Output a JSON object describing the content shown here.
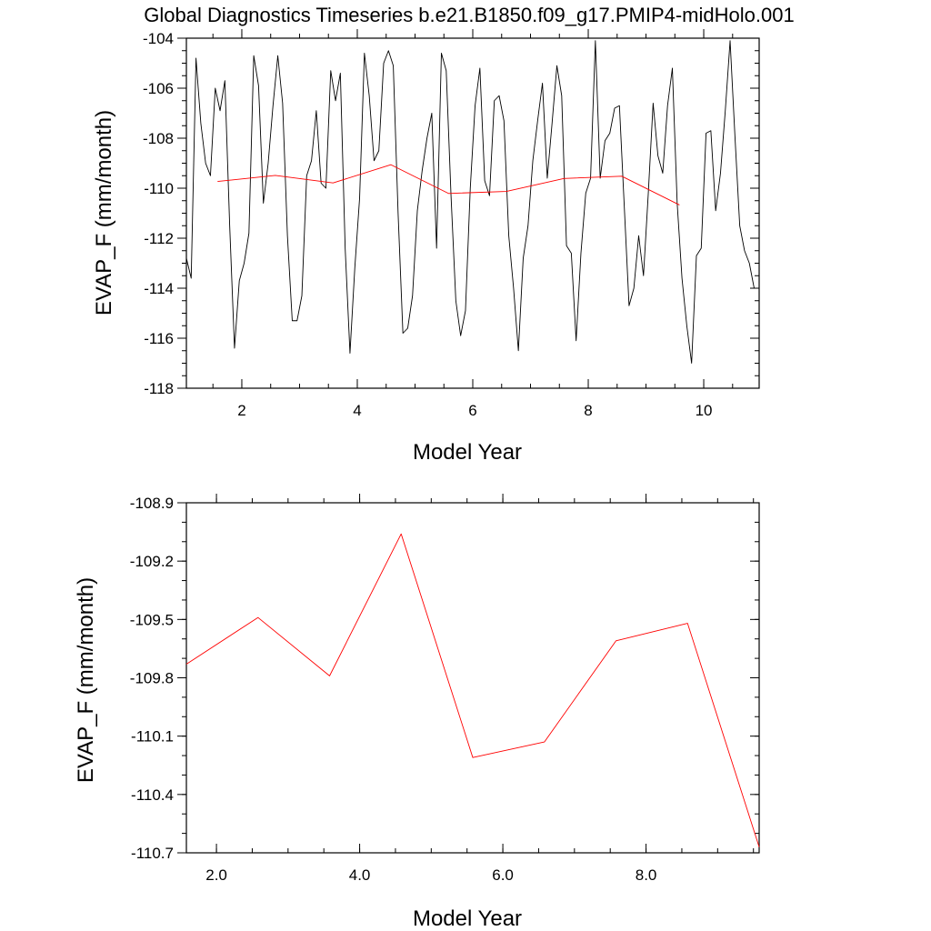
{
  "title": "Global Diagnostics Timeseries b.e21.B1850.f09_g17.PMIP4-midHolo.001",
  "chart_data": [
    {
      "type": "line",
      "xlabel": "Model Year",
      "ylabel": "EVAP_F (mm/month)",
      "xlim": [
        1.04,
        10.96
      ],
      "ylim": [
        -118,
        -104
      ],
      "x_ticks": [
        2,
        4,
        6,
        8,
        10
      ],
      "x_tick_labels": [
        "2",
        "4",
        "6",
        "8",
        "10"
      ],
      "y_ticks": [
        -118,
        -116,
        -114,
        -112,
        -110,
        -108,
        -106,
        -104
      ],
      "y_tick_labels": [
        "-118",
        "-116",
        "-114",
        "-112",
        "-110",
        "-108",
        "-106",
        "-104"
      ],
      "grid": false,
      "series": [
        {
          "color": "#000000",
          "x_start": 1.04,
          "x_step": 0.0833333,
          "values": [
            -112.8,
            -113.6,
            -104.8,
            -107.4,
            -109.0,
            -109.5,
            -106.0,
            -106.9,
            -105.7,
            -111.5,
            -116.4,
            -113.7,
            -113.0,
            -111.8,
            -104.7,
            -105.9,
            -110.6,
            -109.0,
            -106.7,
            -104.7,
            -106.6,
            -111.9,
            -115.3,
            -115.3,
            -114.3,
            -109.5,
            -108.9,
            -106.9,
            -109.8,
            -110.0,
            -105.3,
            -106.5,
            -105.4,
            -112.4,
            -116.6,
            -113.2,
            -110.4,
            -104.6,
            -106.3,
            -108.9,
            -108.5,
            -105.0,
            -104.5,
            -105.1,
            -111.0,
            -115.8,
            -115.6,
            -114.3,
            -110.9,
            -109.3,
            -108.0,
            -107.0,
            -112.4,
            -104.6,
            -105.3,
            -110.3,
            -114.5,
            -115.9,
            -114.9,
            -110.0,
            -106.7,
            -105.2,
            -109.7,
            -110.3,
            -106.5,
            -106.3,
            -107.3,
            -111.9,
            -114.0,
            -116.5,
            -112.8,
            -111.5,
            -108.9,
            -107.3,
            -105.8,
            -109.6,
            -107.4,
            -105.1,
            -106.3,
            -112.3,
            -112.6,
            -116.1,
            -112.6,
            -110.2,
            -109.6,
            -104.1,
            -109.6,
            -108.1,
            -107.8,
            -106.8,
            -106.7,
            -110.7,
            -114.7,
            -114.0,
            -111.9,
            -113.5,
            -110.2,
            -106.6,
            -108.7,
            -109.4,
            -106.7,
            -105.2,
            -110.6,
            -113.6,
            -115.5,
            -117.0,
            -112.7,
            -112.4,
            -107.8,
            -107.7,
            -110.9,
            -109.4,
            -106.9,
            -104.1,
            -107.9,
            -111.5,
            -112.5,
            -113.0,
            -114.0
          ]
        },
        {
          "color": "#ff0000",
          "x": [
            1.58,
            2.58,
            3.58,
            4.58,
            5.58,
            6.58,
            7.58,
            8.58,
            9.58
          ],
          "values": [
            -109.73,
            -109.49,
            -109.79,
            -109.06,
            -110.21,
            -110.13,
            -109.61,
            -109.52,
            -110.67
          ]
        }
      ]
    },
    {
      "type": "line",
      "xlabel": "Model Year",
      "ylabel": "EVAP_F (mm/month)",
      "xlim": [
        1.58,
        9.58
      ],
      "ylim": [
        -110.7,
        -108.9
      ],
      "x_ticks": [
        2.0,
        4.0,
        6.0,
        8.0
      ],
      "x_tick_labels": [
        "2.0",
        "4.0",
        "6.0",
        "8.0"
      ],
      "y_ticks": [
        -110.7,
        -110.4,
        -110.1,
        -109.8,
        -109.5,
        -109.2,
        -108.9
      ],
      "y_tick_labels": [
        "-110.7",
        "-110.4",
        "-110.1",
        "-109.8",
        "-109.5",
        "-109.2",
        "-108.9"
      ],
      "grid": false,
      "series": [
        {
          "color": "#ff0000",
          "x": [
            1.58,
            2.58,
            3.58,
            4.58,
            5.58,
            6.58,
            7.58,
            8.58,
            9.58
          ],
          "values": [
            -109.73,
            -109.49,
            -109.79,
            -109.06,
            -110.21,
            -110.13,
            -109.61,
            -109.52,
            -110.67
          ]
        }
      ]
    }
  ]
}
